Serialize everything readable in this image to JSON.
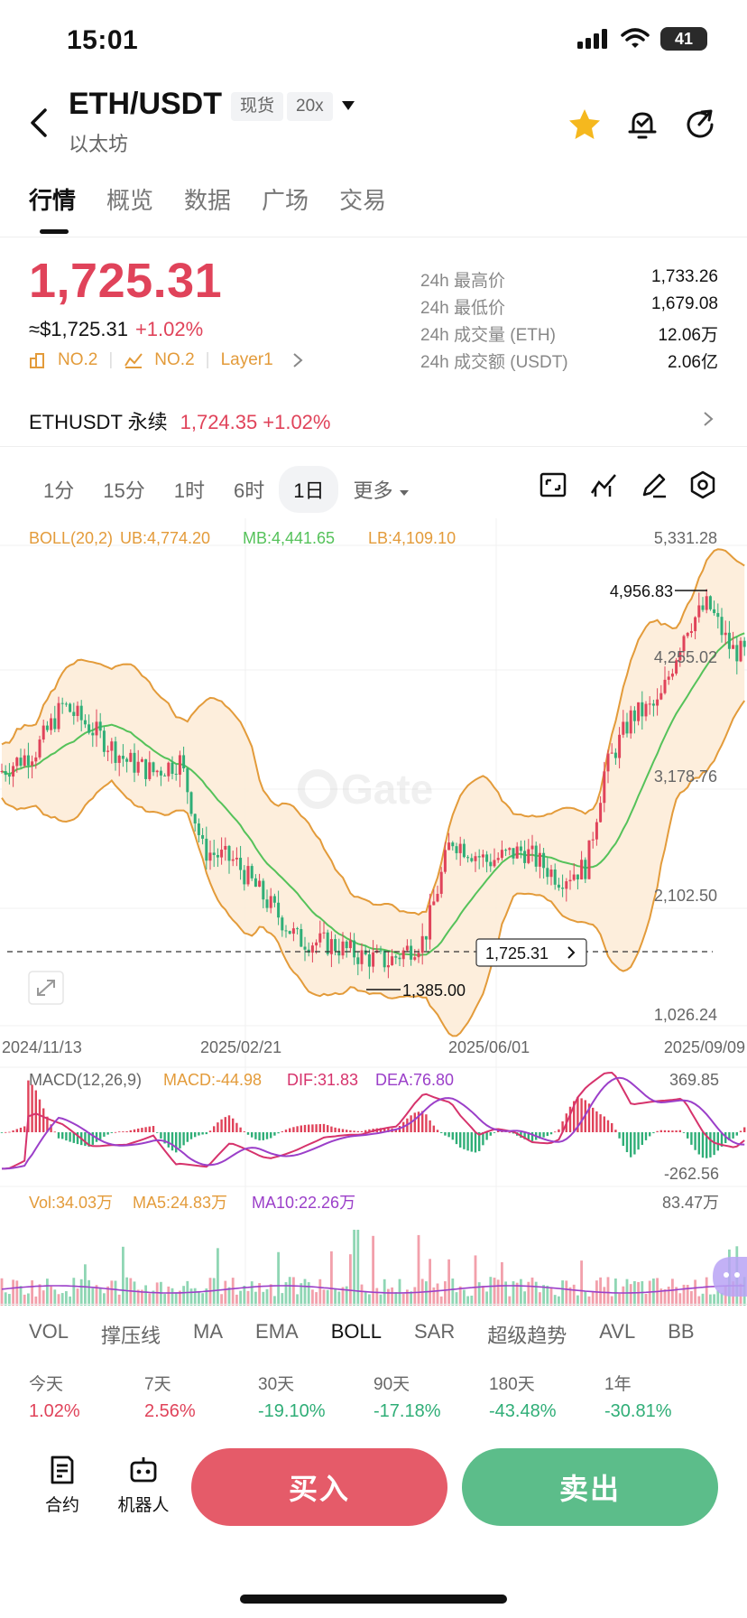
{
  "status": {
    "time": "15:01",
    "battery": "41"
  },
  "header": {
    "pair": "ETH/USDT",
    "type_badge": "现货",
    "leverage_badge": "20x",
    "subtitle": "以太坊",
    "icons": [
      "back-icon",
      "star-icon",
      "bell-icon",
      "share-icon"
    ]
  },
  "tabs": [
    "行情",
    "概览",
    "数据",
    "广场",
    "交易"
  ],
  "price": {
    "last": "1,725.31",
    "usd": "≈$1,725.31",
    "change": "+1.02%",
    "rank1": "NO.2",
    "rank2": "NO.2",
    "sector": "Layer1"
  },
  "stats": [
    {
      "label": "24h 最高价",
      "value": "1,733.26"
    },
    {
      "label": "24h 最低价",
      "value": "1,679.08"
    },
    {
      "label": "24h 成交量 (ETH)",
      "value": "12.06万"
    },
    {
      "label": "24h 成交额 (USDT)",
      "value": "2.06亿"
    }
  ],
  "perp": {
    "name": "ETHUSDT 永续",
    "price": "1,724.35",
    "change": "+1.02%"
  },
  "time_tabs": [
    "1分",
    "15分",
    "1时",
    "6时",
    "1日",
    "更多"
  ],
  "active_time_tab": "1日",
  "boll_legend": {
    "name": "BOLL(20,2)",
    "ub": "UB:4,774.20",
    "mb": "MB:4,441.65",
    "lb": "LB:4,109.10"
  },
  "watermark": "Gate",
  "chart_data": [
    {
      "type": "candlestick",
      "y_axis_labels": [
        "5,331.28",
        "4,255.02",
        "3,178.76",
        "2,102.50",
        "1,026.24"
      ],
      "ylim": [
        1026.24,
        5331.28
      ],
      "x_axis_labels": [
        "2024/11/13",
        "2025/02/21",
        "2025/06/01",
        "2025/09/09"
      ],
      "high_marker": "4,956.83",
      "low_marker": "1,385.00",
      "current_price_tag": "1,725.31",
      "indicator": "BOLL(20,2)",
      "series_colors": {
        "up": "#e0435a",
        "down": "#2fae77",
        "ub_lb": "#e39b3a",
        "mb": "#55c25a",
        "band_fill": "#fdecd8"
      }
    },
    {
      "type": "macd",
      "legend": {
        "name": "MACD(12,26,9)",
        "macd": "MACD:-44.98",
        "dif": "DIF:31.83",
        "dea": "DEA:76.80"
      },
      "y_axis_labels": [
        "369.85",
        "-262.56"
      ],
      "ylim": [
        -262.56,
        369.85
      ]
    },
    {
      "type": "bar",
      "legend": {
        "vol": "Vol:34.03万",
        "ma5": "MA5:24.83万",
        "ma10": "MA10:22.26万"
      },
      "y_axis_labels": [
        "83.47万"
      ],
      "ylim": [
        0,
        834700
      ]
    }
  ],
  "indicator_tabs": [
    "VOL",
    "撑压线",
    "MA",
    "EMA",
    "BOLL",
    "SAR",
    "超级趋势",
    "AVL",
    "BB"
  ],
  "active_indicator": "BOLL",
  "performance": [
    {
      "label": "今天",
      "value": "1.02%",
      "dir": "up"
    },
    {
      "label": "7天",
      "value": "2.56%",
      "dir": "up"
    },
    {
      "label": "30天",
      "value": "-19.10%",
      "dir": "down"
    },
    {
      "label": "90天",
      "value": "-17.18%",
      "dir": "down"
    },
    {
      "label": "180天",
      "value": "-43.48%",
      "dir": "down"
    },
    {
      "label": "1年",
      "value": "-30.81%",
      "dir": "down"
    }
  ],
  "bottom": {
    "contract": "合约",
    "bot": "机器人",
    "buy": "买入",
    "sell": "卖出"
  },
  "colors": {
    "up": "#e0435a",
    "down": "#2fae77",
    "buy_btn": "#e55b69",
    "sell_btn": "#5cbd8a",
    "accent": "#e39b3a",
    "star": "#f5b81e"
  }
}
